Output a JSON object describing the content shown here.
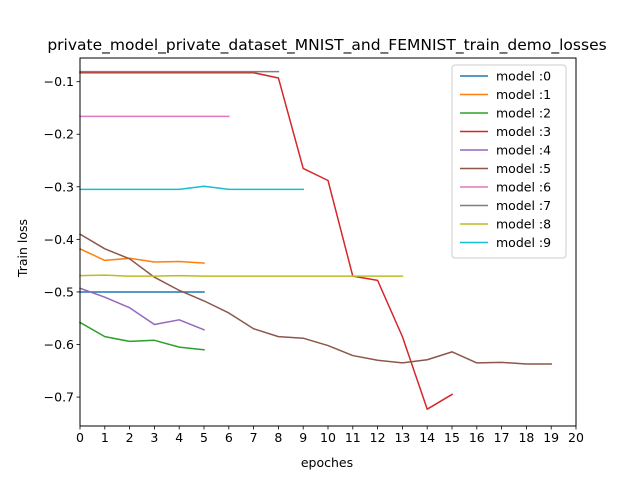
{
  "chart_data": {
    "type": "line",
    "title": "private_model_private_dataset_MNIST_and_FEMNIST_train_demo_losses",
    "xlabel": "epoches",
    "ylabel": "Train loss",
    "xlim": [
      0,
      20
    ],
    "ylim": [
      -0.755,
      -0.055
    ],
    "xticks": [
      0,
      1,
      2,
      3,
      4,
      5,
      6,
      7,
      8,
      9,
      10,
      11,
      12,
      13,
      14,
      15,
      16,
      17,
      18,
      19,
      20
    ],
    "yticks": [
      -0.7,
      -0.6,
      -0.5,
      -0.4,
      -0.3,
      -0.2,
      -0.1
    ],
    "ytick_labels": [
      "−0.7",
      "−0.6",
      "−0.5",
      "−0.4",
      "−0.3",
      "−0.2",
      "−0.1"
    ],
    "grid": false,
    "legend_position": "top-right",
    "series": [
      {
        "name": "model :0",
        "color": "#1f77b4",
        "x": [
          0,
          1,
          2,
          3,
          4,
          5
        ],
        "values": [
          -0.5,
          -0.5,
          -0.5,
          -0.5,
          -0.5,
          -0.5
        ]
      },
      {
        "name": "model :1",
        "color": "#ff7f0e",
        "x": [
          0,
          1,
          2,
          3,
          4,
          5
        ],
        "values": [
          -0.418,
          -0.44,
          -0.436,
          -0.443,
          -0.442,
          -0.445
        ]
      },
      {
        "name": "model :2",
        "color": "#2ca02c",
        "x": [
          0,
          1,
          2,
          3,
          4,
          5
        ],
        "values": [
          -0.558,
          -0.585,
          -0.594,
          -0.592,
          -0.605,
          -0.61
        ]
      },
      {
        "name": "model :3",
        "color": "#d62728",
        "x": [
          0,
          1,
          2,
          3,
          4,
          5,
          6,
          7,
          8,
          9,
          10,
          11,
          12,
          13,
          14,
          15
        ],
        "values": [
          -0.083,
          -0.083,
          -0.083,
          -0.083,
          -0.083,
          -0.083,
          -0.083,
          -0.083,
          -0.093,
          -0.265,
          -0.288,
          -0.47,
          -0.478,
          -0.585,
          -0.723,
          -0.695
        ]
      },
      {
        "name": "model :4",
        "color": "#9467bd",
        "x": [
          0,
          1,
          2,
          3,
          4,
          5
        ],
        "values": [
          -0.493,
          -0.51,
          -0.53,
          -0.562,
          -0.553,
          -0.572
        ]
      },
      {
        "name": "model :5",
        "color": "#8c564b",
        "x": [
          0,
          1,
          2,
          3,
          4,
          5,
          6,
          7,
          8,
          9,
          10,
          11,
          12,
          13,
          14,
          15,
          16,
          17,
          18,
          19
        ],
        "values": [
          -0.39,
          -0.418,
          -0.437,
          -0.472,
          -0.497,
          -0.517,
          -0.54,
          -0.57,
          -0.585,
          -0.588,
          -0.602,
          -0.621,
          -0.63,
          -0.635,
          -0.629,
          -0.614,
          -0.635,
          -0.634,
          -0.637,
          -0.637
        ]
      },
      {
        "name": "model :6",
        "color": "#e377c2",
        "x": [
          0,
          1,
          2,
          3,
          4,
          5,
          6
        ],
        "values": [
          -0.166,
          -0.166,
          -0.166,
          -0.166,
          -0.166,
          -0.166,
          -0.166
        ]
      },
      {
        "name": "model :7",
        "color": "#7f7f7f",
        "x": [
          0,
          1,
          2,
          3,
          4,
          5,
          6,
          7,
          8
        ],
        "values": [
          -0.081,
          -0.081,
          -0.081,
          -0.081,
          -0.081,
          -0.081,
          -0.081,
          -0.081,
          -0.081
        ]
      },
      {
        "name": "model :8",
        "color": "#bcbd22",
        "x": [
          0,
          1,
          2,
          3,
          4,
          5,
          6,
          7,
          8,
          9,
          10,
          11,
          12,
          13
        ],
        "values": [
          -0.469,
          -0.468,
          -0.47,
          -0.47,
          -0.469,
          -0.47,
          -0.47,
          -0.47,
          -0.47,
          -0.47,
          -0.47,
          -0.47,
          -0.47,
          -0.47
        ]
      },
      {
        "name": "model :9",
        "color": "#17becf",
        "x": [
          0,
          1,
          2,
          3,
          4,
          5,
          6,
          7,
          8,
          9
        ],
        "values": [
          -0.305,
          -0.305,
          -0.305,
          -0.305,
          -0.305,
          -0.299,
          -0.305,
          -0.305,
          -0.305,
          -0.305
        ]
      }
    ]
  }
}
